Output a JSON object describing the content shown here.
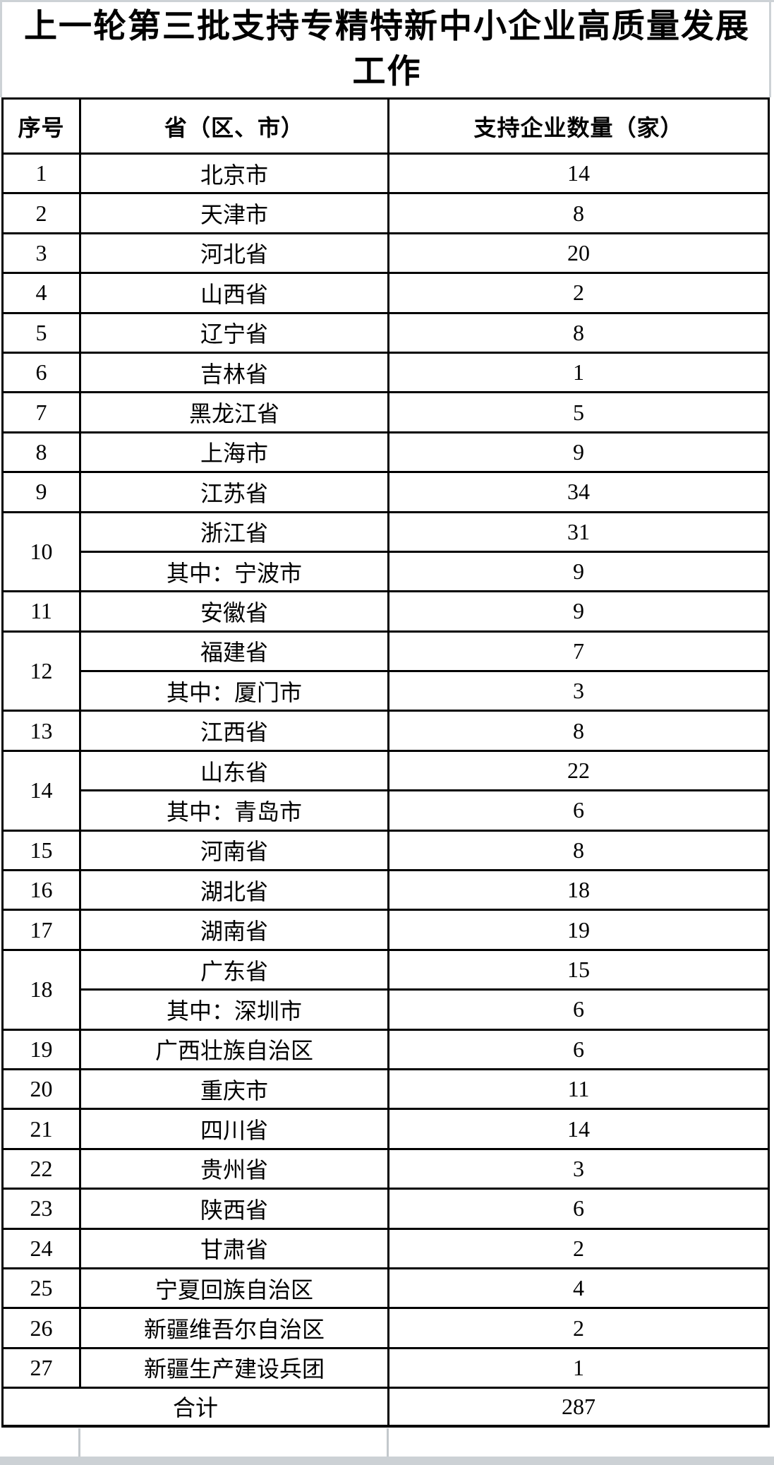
{
  "page": {
    "title": "上一轮第三批支持专精特新中小企业高质量发展工作"
  },
  "table": {
    "headers": [
      "序号",
      "省（区、市）",
      "支持企业数量（家）"
    ],
    "rows": [
      {
        "no": "1",
        "entries": [
          {
            "region": "北京市",
            "count": "14"
          }
        ]
      },
      {
        "no": "2",
        "entries": [
          {
            "region": "天津市",
            "count": "8"
          }
        ]
      },
      {
        "no": "3",
        "entries": [
          {
            "region": "河北省",
            "count": "20"
          }
        ]
      },
      {
        "no": "4",
        "entries": [
          {
            "region": "山西省",
            "count": "2"
          }
        ]
      },
      {
        "no": "5",
        "entries": [
          {
            "region": "辽宁省",
            "count": "8"
          }
        ]
      },
      {
        "no": "6",
        "entries": [
          {
            "region": "吉林省",
            "count": "1"
          }
        ]
      },
      {
        "no": "7",
        "entries": [
          {
            "region": "黑龙江省",
            "count": "5"
          }
        ]
      },
      {
        "no": "8",
        "entries": [
          {
            "region": "上海市",
            "count": "9"
          }
        ]
      },
      {
        "no": "9",
        "entries": [
          {
            "region": "江苏省",
            "count": "34"
          }
        ]
      },
      {
        "no": "10",
        "entries": [
          {
            "region": "浙江省",
            "count": "31"
          },
          {
            "region": "其中：宁波市",
            "count": "9"
          }
        ]
      },
      {
        "no": "11",
        "entries": [
          {
            "region": "安徽省",
            "count": "9"
          }
        ]
      },
      {
        "no": "12",
        "entries": [
          {
            "region": "福建省",
            "count": "7"
          },
          {
            "region": "其中：厦门市",
            "count": "3"
          }
        ]
      },
      {
        "no": "13",
        "entries": [
          {
            "region": "江西省",
            "count": "8"
          }
        ]
      },
      {
        "no": "14",
        "entries": [
          {
            "region": "山东省",
            "count": "22"
          },
          {
            "region": "其中：青岛市",
            "count": "6"
          }
        ]
      },
      {
        "no": "15",
        "entries": [
          {
            "region": "河南省",
            "count": "8"
          }
        ]
      },
      {
        "no": "16",
        "entries": [
          {
            "region": "湖北省",
            "count": "18"
          }
        ]
      },
      {
        "no": "17",
        "entries": [
          {
            "region": "湖南省",
            "count": "19"
          }
        ]
      },
      {
        "no": "18",
        "entries": [
          {
            "region": "广东省",
            "count": "15"
          },
          {
            "region": "其中：深圳市",
            "count": "6"
          }
        ]
      },
      {
        "no": "19",
        "entries": [
          {
            "region": "广西壮族自治区",
            "count": "6"
          }
        ]
      },
      {
        "no": "20",
        "entries": [
          {
            "region": "重庆市",
            "count": "11"
          }
        ]
      },
      {
        "no": "21",
        "entries": [
          {
            "region": "四川省",
            "count": "14"
          }
        ]
      },
      {
        "no": "22",
        "entries": [
          {
            "region": "贵州省",
            "count": "3"
          }
        ]
      },
      {
        "no": "23",
        "entries": [
          {
            "region": "陕西省",
            "count": "6"
          }
        ]
      },
      {
        "no": "24",
        "entries": [
          {
            "region": "甘肃省",
            "count": "2"
          }
        ]
      },
      {
        "no": "25",
        "entries": [
          {
            "region": "宁夏回族自治区",
            "count": "4"
          }
        ]
      },
      {
        "no": "26",
        "entries": [
          {
            "region": "新疆维吾尔自治区",
            "count": "2"
          }
        ]
      },
      {
        "no": "27",
        "entries": [
          {
            "region": "新疆生产建设兵团",
            "count": "1"
          }
        ]
      }
    ],
    "total": {
      "label": "合计",
      "value": "287"
    }
  },
  "colors": {
    "border": "#000000",
    "light_grid": "#c3c8cc",
    "bottom_band": "#ccd1d5"
  }
}
